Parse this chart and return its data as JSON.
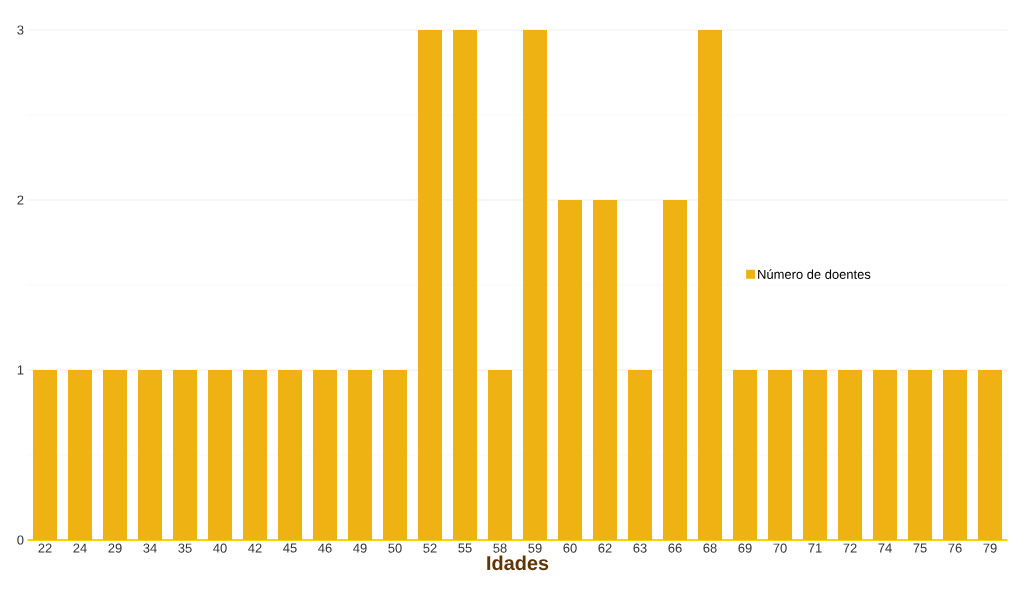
{
  "chart_data": {
    "type": "bar",
    "xlabel": "Idades",
    "categories": [
      "22",
      "24",
      "29",
      "34",
      "35",
      "40",
      "42",
      "45",
      "46",
      "49",
      "50",
      "52",
      "55",
      "58",
      "59",
      "60",
      "62",
      "63",
      "66",
      "68",
      "69",
      "70",
      "71",
      "72",
      "74",
      "75",
      "76",
      "79"
    ],
    "series": [
      {
        "name": "Número de doentes",
        "color": "#efb213",
        "values": [
          1,
          1,
          1,
          1,
          1,
          1,
          1,
          1,
          1,
          1,
          1,
          3,
          3,
          1,
          3,
          2,
          2,
          1,
          2,
          3,
          1,
          1,
          1,
          1,
          1,
          1,
          1,
          1
        ]
      }
    ],
    "ylim": [
      0,
      3
    ],
    "yticks": [
      0,
      1,
      2,
      3
    ],
    "grid": "y",
    "legend": "right"
  }
}
